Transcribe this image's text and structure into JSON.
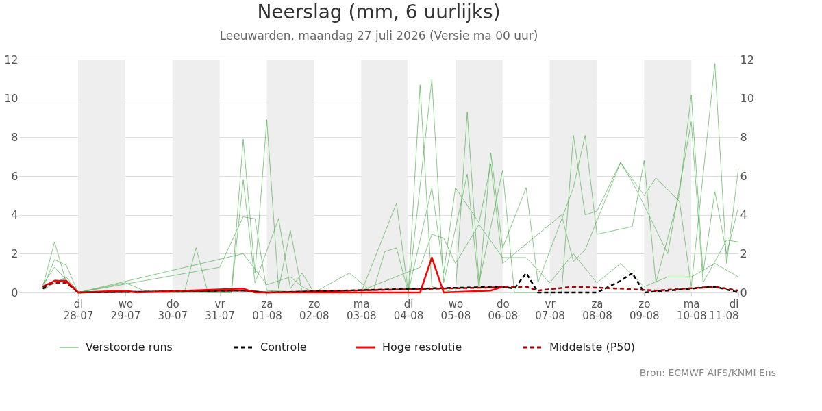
{
  "chart_data": {
    "type": "line",
    "title": "Neerslag (mm, 6 uurlijks)",
    "subtitle": "Leeuwarden, maandag 27 juli 2026 (Versie ma 00 uur)",
    "annotations": [
      "Bron: ECMWF AIFS/KNMI Ens"
    ],
    "xlim": [
      "2026-07-26T18:00",
      "2026-08-11T00:00"
    ],
    "xticks": [
      {
        "value": "2026-07-28",
        "label": "di\n28-07"
      },
      {
        "value": "2026-07-29",
        "label": "wo\n29-07"
      },
      {
        "value": "2026-07-30",
        "label": "do\n30-07"
      },
      {
        "value": "2026-07-31",
        "label": "vr\n31-07"
      },
      {
        "value": "2026-08-01",
        "label": "za\n01-08"
      },
      {
        "value": "2026-08-02",
        "label": "zo\n02-08"
      },
      {
        "value": "2026-08-03",
        "label": "ma\n03-08"
      },
      {
        "value": "2026-08-04",
        "label": "di\n04-08"
      },
      {
        "value": "2026-08-05",
        "label": "wo\n05-08"
      },
      {
        "value": "2026-08-06",
        "label": "do\n06-08"
      },
      {
        "value": "2026-08-07",
        "label": "vr\n07-08"
      },
      {
        "value": "2026-08-08",
        "label": "za\n08-08"
      },
      {
        "value": "2026-08-09",
        "label": "zo\n09-08"
      },
      {
        "value": "2026-08-10",
        "label": "ma\n10-08"
      },
      {
        "value": "2026-08-11",
        "label": "di\n11-08"
      }
    ],
    "ylim": [
      0,
      12
    ],
    "yticks": [
      0,
      2,
      4,
      6,
      8,
      10,
      12
    ],
    "y2lim": [
      0,
      12
    ],
    "y2ticks": [
      0,
      2,
      4,
      6,
      8,
      10,
      12
    ],
    "grid": "y",
    "legend": "bottom",
    "bands": [
      {
        "axis": "x",
        "from": "2026-07-28",
        "to": "2026-07-29",
        "color": "#eeeeee"
      },
      {
        "axis": "x",
        "from": "2026-07-30",
        "to": "2026-07-31",
        "color": "#eeeeee"
      },
      {
        "axis": "x",
        "from": "2026-08-01",
        "to": "2026-08-02",
        "color": "#eeeeee"
      },
      {
        "axis": "x",
        "from": "2026-08-03",
        "to": "2026-08-04",
        "color": "#eeeeee"
      },
      {
        "axis": "x",
        "from": "2026-08-05",
        "to": "2026-08-06",
        "color": "#eeeeee"
      },
      {
        "axis": "x",
        "from": "2026-08-07",
        "to": "2026-08-08",
        "color": "#eeeeee"
      },
      {
        "axis": "x",
        "from": "2026-08-09",
        "to": "2026-08-10",
        "color": "#eeeeee"
      }
    ],
    "series": [
      {
        "name": "Verstoorde runs",
        "color": "#4cae4c",
        "line_style": "solid",
        "x": [
          "2026-07-27T06:00",
          "2026-07-27T12:00",
          "2026-07-27T18:00",
          "2026-07-28T00:00",
          "2026-07-31T06:00",
          "2026-07-31T12:00",
          "2026-07-31T18:00",
          "2026-08-01T00:00",
          "2026-08-01T06:00",
          "2026-08-01T12:00",
          "2026-08-01T18:00",
          "2026-08-04T00:00",
          "2026-08-04T06:00",
          "2026-08-04T12:00",
          "2026-08-05T00:00",
          "2026-08-05T06:00",
          "2026-08-05T12:00",
          "2026-08-06T00:00",
          "2026-08-06T06:00",
          "2026-08-07T06:00",
          "2026-08-07T12:00",
          "2026-08-07T18:00",
          "2026-08-08T00:00",
          "2026-08-08T12:00",
          "2026-08-09T00:00",
          "2026-08-09T06:00",
          "2026-08-09T18:00",
          "2026-08-10T00:00",
          "2026-08-10T12:00",
          "2026-08-10T18:00",
          "2026-08-11T00:00"
        ],
        "values": [
          0.3,
          2.6,
          0.5,
          0,
          0,
          7.9,
          1.0,
          8.9,
          0.2,
          3.2,
          0,
          0,
          10.7,
          0.3,
          0,
          9.3,
          0.5,
          6.3,
          0,
          0,
          8.1,
          4.0,
          4.2,
          6.7,
          5.0,
          5.9,
          4.7,
          0.3,
          11.8,
          1.5,
          6.4
        ]
      },
      {
        "color": "#4cae4c",
        "line_style": "solid",
        "x": [
          "2026-07-27T06:00",
          "2026-07-27T12:00",
          "2026-07-27T18:00",
          "2026-07-28T00:00",
          "2026-07-29T00:00",
          "2026-07-29T12:00",
          "2026-07-30T06:00",
          "2026-07-30T12:00",
          "2026-07-30T18:00",
          "2026-07-31T06:00",
          "2026-07-31T12:00",
          "2026-07-31T18:00",
          "2026-08-01T06:00",
          "2026-08-01T12:00",
          "2026-08-01T18:00",
          "2026-08-02T00:00",
          "2026-08-02T18:00",
          "2026-08-03T06:00",
          "2026-08-03T12:00",
          "2026-08-03T18:00",
          "2026-08-04T00:00",
          "2026-08-04T12:00",
          "2026-08-04T18:00",
          "2026-08-05T06:00",
          "2026-08-05T12:00",
          "2026-08-05T18:00",
          "2026-08-06T00:00",
          "2026-08-06T12:00",
          "2026-08-06T18:00",
          "2026-08-07T12:00",
          "2026-08-07T18:00",
          "2026-08-08T00:00",
          "2026-08-08T18:00",
          "2026-08-09T00:00",
          "2026-08-09T06:00",
          "2026-08-09T18:00",
          "2026-08-10T00:00",
          "2026-08-10T06:00",
          "2026-08-10T12:00",
          "2026-08-10T18:00",
          "2026-08-11T00:00"
        ],
        "values": [
          0.2,
          1.7,
          1.4,
          0,
          0.5,
          0,
          0,
          2.3,
          0,
          0,
          5.8,
          0.5,
          3.8,
          0.2,
          1.0,
          0,
          1.0,
          0,
          2.1,
          2.3,
          0,
          11.0,
          0.5,
          6.1,
          0.2,
          7.2,
          2.3,
          5.4,
          0.5,
          5.4,
          8.1,
          3.0,
          3.4,
          6.8,
          0.5,
          5.1,
          10.2,
          1.0,
          5.2,
          2.0,
          4.4
        ]
      },
      {
        "color": "#4cae4c",
        "line_style": "solid",
        "x": [
          "2026-07-27T06:00",
          "2026-07-27T12:00",
          "2026-07-28T00:00",
          "2026-07-31T00:00",
          "2026-07-31T12:00",
          "2026-07-31T18:00",
          "2026-08-01T00:00",
          "2026-08-02T00:00",
          "2026-08-03T00:00",
          "2026-08-03T18:00",
          "2026-08-04T00:00",
          "2026-08-04T06:00",
          "2026-08-04T12:00",
          "2026-08-04T18:00",
          "2026-08-05T00:00",
          "2026-08-05T12:00",
          "2026-08-05T18:00",
          "2026-08-06T00:00",
          "2026-08-07T06:00",
          "2026-08-07T12:00",
          "2026-08-07T18:00",
          "2026-08-08T06:00",
          "2026-08-08T12:00",
          "2026-08-08T18:00",
          "2026-08-09T00:00",
          "2026-08-09T12:00",
          "2026-08-10T00:00",
          "2026-08-10T06:00",
          "2026-08-10T18:00",
          "2026-08-11T00:00"
        ],
        "values": [
          0.4,
          1.3,
          0,
          1.3,
          3.9,
          3.8,
          0.1,
          0,
          0,
          4.6,
          0,
          2.7,
          5.4,
          1.0,
          5.4,
          3.6,
          6.6,
          1.5,
          4.0,
          1.6,
          2.2,
          5.2,
          6.7,
          5.7,
          4.5,
          2.0,
          8.8,
          0.5,
          2.7,
          2.6
        ]
      },
      {
        "color": "#4cae4c",
        "line_style": "solid",
        "x": [
          "2026-07-27T06:00",
          "2026-07-27T12:00",
          "2026-07-27T18:00",
          "2026-07-28T00:00",
          "2026-07-31T12:00",
          "2026-08-01T00:00",
          "2026-08-01T12:00",
          "2026-08-01T18:00",
          "2026-08-02T00:00",
          "2026-08-03T00:00",
          "2026-08-04T06:00",
          "2026-08-04T12:00",
          "2026-08-04T18:00",
          "2026-08-05T00:00",
          "2026-08-05T12:00",
          "2026-08-06T00:00",
          "2026-08-06T12:00",
          "2026-08-07T00:00",
          "2026-08-07T12:00",
          "2026-08-08T00:00",
          "2026-08-08T12:00",
          "2026-08-09T00:00",
          "2026-08-09T12:00",
          "2026-08-10T00:00",
          "2026-08-10T12:00",
          "2026-08-11T00:00"
        ],
        "values": [
          0.1,
          0.5,
          0.8,
          0,
          2.0,
          0.4,
          0.8,
          0.3,
          0,
          0.1,
          1.3,
          3.0,
          2.8,
          1.5,
          3.5,
          1.8,
          1.8,
          0.5,
          2.0,
          0.5,
          1.5,
          0.3,
          0.8,
          0.8,
          1.5,
          0.8
        ]
      },
      {
        "name": "Controle",
        "color": "#000000",
        "line_style": "dashed",
        "x": [
          "2026-07-27T06:00",
          "2026-07-27T12:00",
          "2026-07-27T18:00",
          "2026-07-28T00:00",
          "2026-07-31T12:00",
          "2026-08-01T00:00",
          "2026-08-06T00:00",
          "2026-08-06T06:00",
          "2026-08-06T12:00",
          "2026-08-06T18:00",
          "2026-08-08T00:00",
          "2026-08-08T12:00",
          "2026-08-08T18:00",
          "2026-08-09T00:00",
          "2026-08-10T12:00",
          "2026-08-11T00:00"
        ],
        "values": [
          0.2,
          0.6,
          0.6,
          0,
          0.1,
          0,
          0.3,
          0.2,
          1.0,
          0,
          0,
          0.6,
          1.0,
          0,
          0.3,
          0
        ]
      },
      {
        "name": "Hoge resolutie",
        "color": "#ff0000",
        "line_style": "solid",
        "x": [
          "2026-07-27T06:00",
          "2026-07-27T12:00",
          "2026-07-27T18:00",
          "2026-07-28T00:00",
          "2026-07-29T00:00",
          "2026-07-29T06:00",
          "2026-07-31T12:00",
          "2026-07-31T18:00",
          "2026-08-04T06:00",
          "2026-08-04T12:00",
          "2026-08-04T18:00",
          "2026-08-05T18:00",
          "2026-08-06T00:00"
        ],
        "values": [
          0.3,
          0.6,
          0.6,
          0,
          0.1,
          0,
          0.2,
          0,
          0,
          1.8,
          0,
          0.1,
          0.3
        ]
      },
      {
        "name": "Middelste (P50)",
        "color": "#aa0000",
        "line_style": "dashed",
        "x": [
          "2026-07-27T06:00",
          "2026-07-27T12:00",
          "2026-07-27T18:00",
          "2026-07-28T00:00",
          "2026-07-31T12:00",
          "2026-08-01T00:00",
          "2026-08-06T12:00",
          "2026-08-06T18:00",
          "2026-08-07T12:00",
          "2026-08-08T12:00",
          "2026-08-09T06:00",
          "2026-08-10T12:00",
          "2026-08-11T00:00"
        ],
        "values": [
          0.3,
          0.5,
          0.5,
          0,
          0.1,
          0,
          0.3,
          0.1,
          0.3,
          0.2,
          0.1,
          0.3,
          0.1
        ]
      }
    ]
  }
}
